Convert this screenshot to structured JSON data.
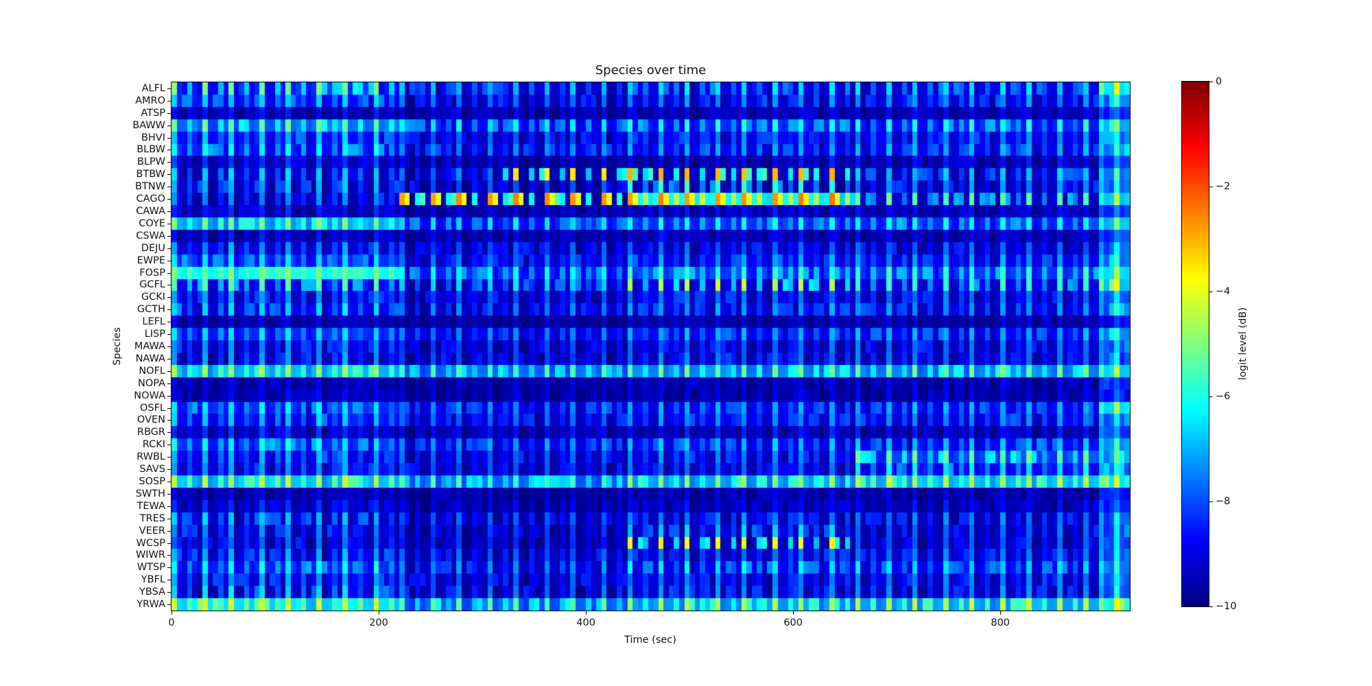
{
  "chart_data": {
    "type": "heatmap",
    "title": "Species over time",
    "xlabel": "Time (sec)",
    "ylabel": "Species",
    "colorbar_label": "logit level (dB)",
    "colormap": "jet",
    "clim": [
      -10,
      0
    ],
    "color_min": "#000080",
    "color_max": "#800000",
    "x_range": [
      0,
      925
    ],
    "time_bin_sec": 5,
    "n_time_bins": 185,
    "n_species": 43,
    "grid": false,
    "x_ticks": [
      {
        "sec": 0,
        "label": "0"
      },
      {
        "sec": 200,
        "label": "200"
      },
      {
        "sec": 400,
        "label": "400"
      },
      {
        "sec": 600,
        "label": "600"
      },
      {
        "sec": 800,
        "label": "800"
      }
    ],
    "colorbar_ticks": [
      {
        "value": 0,
        "label": "0"
      },
      {
        "value": -2,
        "label": "−2"
      },
      {
        "value": -4,
        "label": "−4"
      },
      {
        "value": -6,
        "label": "−6"
      },
      {
        "value": -8,
        "label": "−8"
      },
      {
        "value": -10,
        "label": "−10"
      }
    ],
    "seed": 7,
    "dash_probability": 0.15,
    "event_period_bins": 11,
    "event_bins": [
      0,
      6
    ],
    "secondary_event_bins": [
      3,
      9
    ],
    "segment_bounds_sec": [
      0,
      218,
      320,
      440,
      660,
      895
    ],
    "rows": [
      {
        "name": "ALFL",
        "bg": [
          -8.6,
          -9.3,
          -9.3,
          -9.1,
          -9.1,
          -6.4
        ],
        "spike": [
          -5.0,
          -6.9,
          -6.9,
          -6.5,
          -6.6,
          -4.0
        ]
      },
      {
        "name": "AMRO",
        "bg": [
          -8.8,
          -9.4,
          -9.4,
          -9.2,
          -9.2,
          -7.6
        ],
        "spike": [
          -6.6,
          -7.7,
          -7.7,
          -7.3,
          -7.3,
          -5.8
        ]
      },
      {
        "name": "ATSP",
        "bg": [
          -9.7,
          -9.8,
          -9.8,
          -9.7,
          -9.7,
          -8.6
        ],
        "spike": [
          -8.6,
          -9.0,
          -9.0,
          -8.8,
          -8.8,
          -7.6
        ]
      },
      {
        "name": "BAWW",
        "bg": [
          -7.8,
          -8.9,
          -8.9,
          -8.6,
          -8.6,
          -7.0
        ],
        "spike": [
          -5.2,
          -6.4,
          -6.4,
          -6.0,
          -6.0,
          -5.0
        ]
      },
      {
        "name": "BHVI",
        "bg": [
          -8.8,
          -9.3,
          -9.3,
          -9.1,
          -9.1,
          -7.8
        ],
        "spike": [
          -6.8,
          -7.8,
          -7.8,
          -7.4,
          -7.4,
          -6.0
        ]
      },
      {
        "name": "BLBW",
        "bg": [
          -8.6,
          -9.2,
          -9.2,
          -9.0,
          -9.0,
          -7.6
        ],
        "spike": [
          -6.2,
          -7.4,
          -7.4,
          -7.0,
          -7.0,
          -5.8
        ]
      },
      {
        "name": "BLPW",
        "bg": [
          -9.6,
          -9.8,
          -9.8,
          -9.7,
          -9.7,
          -8.4
        ],
        "spike": [
          -8.2,
          -8.8,
          -8.8,
          -8.6,
          -8.6,
          -7.2
        ]
      },
      {
        "name": "BTBW",
        "bg": [
          -9.3,
          -9.6,
          -9.6,
          -9.5,
          -9.4,
          -7.8
        ],
        "spike": [
          -6.6,
          -7.6,
          -3.6,
          -3.0,
          -6.8,
          -5.4
        ]
      },
      {
        "name": "BTNW",
        "bg": [
          -9.4,
          -9.7,
          -9.7,
          -9.6,
          -9.5,
          -7.9
        ],
        "spike": [
          -7.0,
          -8.0,
          -8.0,
          -5.8,
          -7.4,
          -5.8
        ]
      },
      {
        "name": "CAGO",
        "bg": [
          -9.5,
          -9.6,
          -9.6,
          -6.3,
          -9.3,
          -6.8
        ],
        "spike": [
          -7.4,
          -2.7,
          -2.7,
          -2.6,
          -5.4,
          -4.6
        ],
        "pair_segments": [
          1,
          2,
          3
        ],
        "pair_delta": -1.2
      },
      {
        "name": "CAWA",
        "bg": [
          -9.7,
          -9.8,
          -9.8,
          -9.7,
          -9.7,
          -8.4
        ],
        "spike": [
          -8.4,
          -8.9,
          -8.9,
          -8.7,
          -8.7,
          -7.4
        ]
      },
      {
        "name": "COYE",
        "bg": [
          -7.2,
          -8.7,
          -8.7,
          -8.4,
          -8.4,
          -7.0
        ],
        "spike": [
          -5.0,
          -6.5,
          -6.5,
          -6.1,
          -6.1,
          -5.0
        ]
      },
      {
        "name": "CSWA",
        "bg": [
          -9.7,
          -9.8,
          -9.8,
          -9.7,
          -9.7,
          -8.5
        ],
        "spike": [
          -8.5,
          -9.0,
          -9.0,
          -8.8,
          -8.8,
          -7.5
        ]
      },
      {
        "name": "DEJU",
        "bg": [
          -9.2,
          -9.6,
          -9.6,
          -9.4,
          -9.4,
          -8.0
        ],
        "spike": [
          -7.2,
          -8.0,
          -8.0,
          -7.8,
          -7.8,
          -6.4
        ]
      },
      {
        "name": "EWPE",
        "bg": [
          -8.5,
          -9.2,
          -9.2,
          -9.0,
          -9.0,
          -7.6
        ],
        "spike": [
          -6.6,
          -7.6,
          -7.6,
          -7.2,
          -7.2,
          -5.8
        ]
      },
      {
        "name": "FOSP",
        "bg": [
          -6.2,
          -8.6,
          -8.6,
          -8.3,
          -8.3,
          -6.6
        ],
        "spike": [
          -5.0,
          -6.2,
          -6.2,
          -5.8,
          -5.8,
          -4.6
        ]
      },
      {
        "name": "GCFL",
        "bg": [
          -8.9,
          -9.3,
          -9.3,
          -9.1,
          -9.1,
          -7.0
        ],
        "spike": [
          -5.4,
          -6.6,
          -6.6,
          -4.4,
          -5.8,
          -3.8
        ]
      },
      {
        "name": "GCKI",
        "bg": [
          -9.2,
          -9.5,
          -9.5,
          -9.3,
          -9.3,
          -8.0
        ],
        "spike": [
          -7.2,
          -8.0,
          -8.0,
          -7.6,
          -7.6,
          -6.4
        ]
      },
      {
        "name": "GCTH",
        "bg": [
          -9.0,
          -9.4,
          -9.4,
          -9.2,
          -9.2,
          -7.8
        ],
        "spike": [
          -6.6,
          -7.6,
          -7.6,
          -7.2,
          -7.2,
          -6.0
        ]
      },
      {
        "name": "LEFL",
        "bg": [
          -9.8,
          -9.9,
          -9.9,
          -9.8,
          -9.8,
          -8.8
        ],
        "spike": [
          -9.0,
          -9.3,
          -9.3,
          -9.1,
          -9.1,
          -8.0
        ]
      },
      {
        "name": "LISP",
        "bg": [
          -8.4,
          -9.1,
          -9.1,
          -8.9,
          -8.9,
          -7.5
        ],
        "spike": [
          -6.4,
          -7.4,
          -7.4,
          -7.0,
          -7.0,
          -5.8
        ]
      },
      {
        "name": "MAWA",
        "bg": [
          -9.3,
          -9.6,
          -9.6,
          -9.4,
          -9.4,
          -8.1
        ],
        "spike": [
          -7.3,
          -8.1,
          -8.1,
          -7.7,
          -7.7,
          -6.5
        ]
      },
      {
        "name": "NAWA",
        "bg": [
          -9.3,
          -9.6,
          -9.6,
          -9.4,
          -9.4,
          -8.1
        ],
        "spike": [
          -7.2,
          -8.0,
          -8.0,
          -7.6,
          -7.6,
          -6.4
        ]
      },
      {
        "name": "NOFL",
        "bg": [
          -7.0,
          -7.8,
          -7.8,
          -7.5,
          -7.5,
          -6.6
        ],
        "spike": [
          -4.6,
          -5.6,
          -5.6,
          -5.2,
          -5.2,
          -4.4
        ]
      },
      {
        "name": "NOPA",
        "bg": [
          -9.8,
          -9.9,
          -9.9,
          -9.8,
          -9.8,
          -8.7
        ],
        "spike": [
          -8.9,
          -9.2,
          -9.2,
          -9.0,
          -9.0,
          -7.9
        ]
      },
      {
        "name": "NOWA",
        "bg": [
          -9.7,
          -9.9,
          -9.9,
          -9.8,
          -9.8,
          -8.7
        ],
        "spike": [
          -8.8,
          -9.1,
          -9.1,
          -8.9,
          -8.9,
          -7.8
        ]
      },
      {
        "name": "OSFL",
        "bg": [
          -8.5,
          -9.1,
          -9.1,
          -8.9,
          -8.9,
          -6.6
        ],
        "spike": [
          -6.4,
          -7.4,
          -7.4,
          -7.0,
          -7.0,
          -4.8
        ]
      },
      {
        "name": "OVEN",
        "bg": [
          -8.8,
          -9.3,
          -9.3,
          -9.1,
          -9.1,
          -7.8
        ],
        "spike": [
          -6.8,
          -7.7,
          -7.7,
          -7.3,
          -7.3,
          -6.2
        ]
      },
      {
        "name": "RBGR",
        "bg": [
          -9.6,
          -9.8,
          -9.8,
          -9.7,
          -9.7,
          -8.4
        ],
        "spike": [
          -8.2,
          -8.8,
          -8.8,
          -8.6,
          -8.6,
          -7.2
        ]
      },
      {
        "name": "RCKI",
        "bg": [
          -8.5,
          -9.1,
          -9.1,
          -8.9,
          -8.9,
          -7.4
        ],
        "spike": [
          -6.2,
          -7.2,
          -7.2,
          -6.8,
          -6.8,
          -5.6
        ]
      },
      {
        "name": "RWBL",
        "bg": [
          -9.0,
          -9.4,
          -9.4,
          -9.2,
          -8.2,
          -7.4
        ],
        "spike": [
          -7.0,
          -7.8,
          -7.8,
          -7.4,
          -5.2,
          -5.4
        ]
      },
      {
        "name": "SAVS",
        "bg": [
          -9.1,
          -9.5,
          -9.5,
          -9.3,
          -8.8,
          -7.8
        ],
        "spike": [
          -7.2,
          -8.0,
          -8.0,
          -7.6,
          -6.4,
          -6.0
        ]
      },
      {
        "name": "SOSP",
        "bg": [
          -6.9,
          -7.8,
          -7.8,
          -7.3,
          -6.9,
          -6.4
        ],
        "spike": [
          -4.4,
          -5.6,
          -5.6,
          -4.8,
          -4.4,
          -4.2
        ]
      },
      {
        "name": "SWTH",
        "bg": [
          -9.8,
          -9.9,
          -9.9,
          -9.8,
          -9.8,
          -8.8
        ],
        "spike": [
          -8.9,
          -9.2,
          -9.2,
          -9.0,
          -9.0,
          -7.9
        ]
      },
      {
        "name": "TEWA",
        "bg": [
          -9.6,
          -9.8,
          -9.8,
          -9.7,
          -9.7,
          -8.5
        ],
        "spike": [
          -8.3,
          -8.9,
          -8.9,
          -8.7,
          -8.7,
          -7.4
        ]
      },
      {
        "name": "TRES",
        "bg": [
          -9.3,
          -9.6,
          -9.6,
          -9.4,
          -9.4,
          -8.0
        ],
        "spike": [
          -6.8,
          -7.9,
          -7.9,
          -7.5,
          -7.5,
          -6.2
        ]
      },
      {
        "name": "VEER",
        "bg": [
          -9.4,
          -9.7,
          -9.7,
          -9.4,
          -9.5,
          -8.2
        ],
        "spike": [
          -7.4,
          -8.2,
          -8.2,
          -6.8,
          -7.8,
          -6.4
        ]
      },
      {
        "name": "WCSP",
        "bg": [
          -9.5,
          -9.7,
          -9.7,
          -9.5,
          -9.6,
          -8.2
        ],
        "spike": [
          -7.8,
          -8.4,
          -8.4,
          -3.8,
          -7.8,
          -6.6
        ]
      },
      {
        "name": "WIWR",
        "bg": [
          -9.2,
          -9.5,
          -9.5,
          -9.3,
          -9.3,
          -8.0
        ],
        "spike": [
          -7.0,
          -7.9,
          -7.9,
          -7.5,
          -7.5,
          -6.2
        ]
      },
      {
        "name": "WTSP",
        "bg": [
          -8.6,
          -9.2,
          -9.2,
          -9.0,
          -9.0,
          -7.6
        ],
        "spike": [
          -6.2,
          -7.3,
          -7.3,
          -6.4,
          -6.6,
          -5.6
        ]
      },
      {
        "name": "YBFL",
        "bg": [
          -9.2,
          -9.5,
          -9.5,
          -9.3,
          -9.3,
          -8.0
        ],
        "spike": [
          -7.1,
          -7.9,
          -7.9,
          -7.5,
          -7.5,
          -6.3
        ]
      },
      {
        "name": "YBSA",
        "bg": [
          -9.3,
          -9.6,
          -9.6,
          -9.4,
          -9.4,
          -8.0
        ],
        "spike": [
          -6.6,
          -7.7,
          -7.7,
          -7.3,
          -7.3,
          -6.0
        ]
      },
      {
        "name": "YRWA",
        "bg": [
          -6.6,
          -7.9,
          -7.9,
          -7.4,
          -7.2,
          -6.0
        ],
        "spike": [
          -4.2,
          -5.4,
          -5.4,
          -4.6,
          -4.4,
          -3.9
        ]
      }
    ]
  }
}
